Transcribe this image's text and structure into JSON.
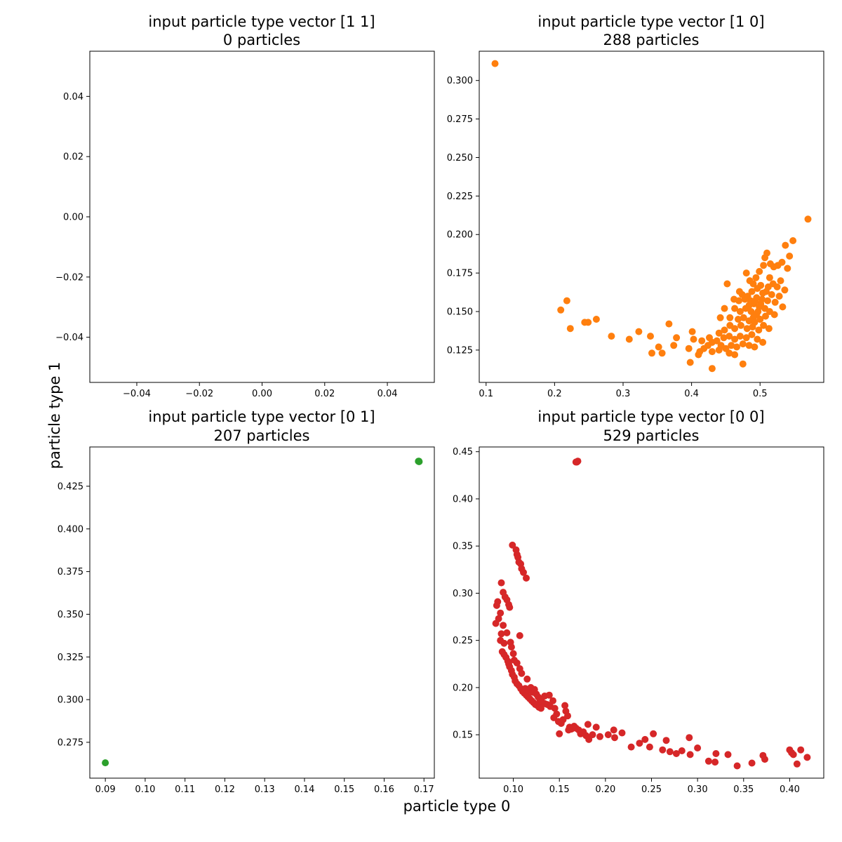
{
  "figure": {
    "xlabel": "particle type 0",
    "ylabel": "particle type 1"
  },
  "chart_data": [
    {
      "type": "scatter",
      "title": "input particle type vector [1 1]",
      "subtitle": "0 particles",
      "color": "#1f77b4",
      "xlim": [
        -0.055,
        0.055
      ],
      "ylim": [
        -0.055,
        0.055
      ],
      "xticks": [
        -0.04,
        -0.02,
        0.0,
        0.02,
        0.04
      ],
      "xtick_labels": [
        "−0.04",
        "−0.02",
        "0.00",
        "0.02",
        "0.04"
      ],
      "yticks": [
        -0.04,
        -0.02,
        0.0,
        0.02,
        0.04
      ],
      "ytick_labels": [
        "−0.04",
        "−0.02",
        "0.00",
        "0.02",
        "0.04"
      ],
      "points": []
    },
    {
      "type": "scatter",
      "title": "input particle type vector [1 0]",
      "subtitle": "288 particles",
      "color": "#ff7f0e",
      "xlim": [
        0.09,
        0.593
      ],
      "ylim": [
        0.104,
        0.319
      ],
      "xticks": [
        0.1,
        0.2,
        0.3,
        0.4,
        0.5
      ],
      "xtick_labels": [
        "0.1",
        "0.2",
        "0.3",
        "0.4",
        "0.5"
      ],
      "yticks": [
        0.125,
        0.15,
        0.175,
        0.2,
        0.225,
        0.25,
        0.275,
        0.3
      ],
      "ytick_labels": [
        "0.125",
        "0.150",
        "0.175",
        "0.200",
        "0.225",
        "0.250",
        "0.275",
        "0.300"
      ],
      "points": [
        [
          0.113,
          0.311
        ],
        [
          0.57,
          0.21
        ],
        [
          0.548,
          0.196
        ],
        [
          0.537,
          0.193
        ],
        [
          0.543,
          0.186
        ],
        [
          0.532,
          0.182
        ],
        [
          0.526,
          0.18
        ],
        [
          0.52,
          0.179
        ],
        [
          0.51,
          0.188
        ],
        [
          0.507,
          0.185
        ],
        [
          0.515,
          0.181
        ],
        [
          0.505,
          0.18
        ],
        [
          0.499,
          0.176
        ],
        [
          0.48,
          0.175
        ],
        [
          0.494,
          0.172
        ],
        [
          0.514,
          0.172
        ],
        [
          0.485,
          0.17
        ],
        [
          0.53,
          0.17
        ],
        [
          0.54,
          0.178
        ],
        [
          0.536,
          0.164
        ],
        [
          0.525,
          0.166
        ],
        [
          0.519,
          0.168
        ],
        [
          0.49,
          0.168
        ],
        [
          0.501,
          0.167
        ],
        [
          0.496,
          0.165
        ],
        [
          0.488,
          0.163
        ],
        [
          0.509,
          0.163
        ],
        [
          0.517,
          0.161
        ],
        [
          0.528,
          0.16
        ],
        [
          0.533,
          0.153
        ],
        [
          0.522,
          0.156
        ],
        [
          0.511,
          0.157
        ],
        [
          0.503,
          0.158
        ],
        [
          0.495,
          0.159
        ],
        [
          0.486,
          0.157
        ],
        [
          0.478,
          0.158
        ],
        [
          0.469,
          0.157
        ],
        [
          0.474,
          0.161
        ],
        [
          0.482,
          0.16
        ],
        [
          0.491,
          0.155
        ],
        [
          0.499,
          0.153
        ],
        [
          0.507,
          0.152
        ],
        [
          0.514,
          0.15
        ],
        [
          0.521,
          0.148
        ],
        [
          0.495,
          0.148
        ],
        [
          0.487,
          0.15
        ],
        [
          0.479,
          0.152
        ],
        [
          0.471,
          0.15
        ],
        [
          0.463,
          0.152
        ],
        [
          0.456,
          0.146
        ],
        [
          0.468,
          0.145
        ],
        [
          0.476,
          0.146
        ],
        [
          0.484,
          0.144
        ],
        [
          0.492,
          0.143
        ],
        [
          0.5,
          0.145
        ],
        [
          0.505,
          0.141
        ],
        [
          0.513,
          0.139
        ],
        [
          0.498,
          0.138
        ],
        [
          0.489,
          0.14
        ],
        [
          0.481,
          0.139
        ],
        [
          0.472,
          0.141
        ],
        [
          0.463,
          0.139
        ],
        [
          0.456,
          0.141
        ],
        [
          0.448,
          0.138
        ],
        [
          0.44,
          0.136
        ],
        [
          0.447,
          0.133
        ],
        [
          0.455,
          0.134
        ],
        [
          0.463,
          0.132
        ],
        [
          0.471,
          0.134
        ],
        [
          0.48,
          0.133
        ],
        [
          0.488,
          0.135
        ],
        [
          0.496,
          0.132
        ],
        [
          0.504,
          0.13
        ],
        [
          0.492,
          0.127
        ],
        [
          0.484,
          0.128
        ],
        [
          0.475,
          0.129
        ],
        [
          0.466,
          0.127
        ],
        [
          0.458,
          0.128
        ],
        [
          0.45,
          0.126
        ],
        [
          0.443,
          0.128
        ],
        [
          0.437,
          0.131
        ],
        [
          0.43,
          0.13
        ],
        [
          0.424,
          0.128
        ],
        [
          0.418,
          0.126
        ],
        [
          0.412,
          0.124
        ],
        [
          0.43,
          0.124
        ],
        [
          0.44,
          0.125
        ],
        [
          0.455,
          0.123
        ],
        [
          0.463,
          0.122
        ],
        [
          0.475,
          0.116
        ],
        [
          0.43,
          0.113
        ],
        [
          0.5,
          0.145
        ],
        [
          0.497,
          0.15
        ],
        [
          0.501,
          0.155
        ],
        [
          0.508,
          0.147
        ],
        [
          0.493,
          0.157
        ],
        [
          0.504,
          0.162
        ],
        [
          0.512,
          0.166
        ],
        [
          0.49,
          0.146
        ],
        [
          0.484,
          0.154
        ],
        [
          0.462,
          0.158
        ],
        [
          0.47,
          0.163
        ],
        [
          0.448,
          0.152
        ],
        [
          0.442,
          0.146
        ],
        [
          0.452,
          0.168
        ],
        [
          0.426,
          0.133
        ],
        [
          0.415,
          0.131
        ],
        [
          0.403,
          0.132
        ],
        [
          0.396,
          0.126
        ],
        [
          0.401,
          0.137
        ],
        [
          0.398,
          0.117
        ],
        [
          0.41,
          0.122
        ],
        [
          0.378,
          0.133
        ],
        [
          0.374,
          0.128
        ],
        [
          0.367,
          0.142
        ],
        [
          0.352,
          0.127
        ],
        [
          0.357,
          0.123
        ],
        [
          0.342,
          0.123
        ],
        [
          0.34,
          0.134
        ],
        [
          0.323,
          0.137
        ],
        [
          0.309,
          0.132
        ],
        [
          0.283,
          0.134
        ],
        [
          0.261,
          0.145
        ],
        [
          0.249,
          0.143
        ],
        [
          0.244,
          0.143
        ],
        [
          0.223,
          0.139
        ],
        [
          0.218,
          0.157
        ],
        [
          0.209,
          0.151
        ]
      ]
    },
    {
      "type": "scatter",
      "title": "input particle type vector [0 1]",
      "subtitle": "207 particles",
      "color": "#2ca02c",
      "xlim": [
        0.0861,
        0.1726
      ],
      "ylim": [
        0.254,
        0.448
      ],
      "xticks": [
        0.09,
        0.1,
        0.11,
        0.12,
        0.13,
        0.14,
        0.15,
        0.16,
        0.17
      ],
      "xtick_labels": [
        "0.09",
        "0.10",
        "0.11",
        "0.12",
        "0.13",
        "0.14",
        "0.15",
        "0.16",
        "0.17"
      ],
      "yticks": [
        0.275,
        0.3,
        0.325,
        0.35,
        0.375,
        0.4,
        0.425
      ],
      "ytick_labels": [
        "0.275",
        "0.300",
        "0.325",
        "0.350",
        "0.375",
        "0.400",
        "0.425"
      ],
      "points": [
        [
          0.09,
          0.263
        ],
        [
          0.1687,
          0.4395
        ],
        [
          0.1686,
          0.4396
        ],
        [
          0.1688,
          0.4394
        ],
        [
          0.1687,
          0.4397
        ]
      ]
    },
    {
      "type": "scatter",
      "title": "input particle type vector [0 0]",
      "subtitle": "529 particles",
      "color": "#d62728",
      "xlim": [
        0.063,
        0.437
      ],
      "ylim": [
        0.104,
        0.455
      ],
      "xticks": [
        0.1,
        0.15,
        0.2,
        0.25,
        0.3,
        0.35,
        0.4
      ],
      "xtick_labels": [
        "0.10",
        "0.15",
        "0.20",
        "0.25",
        "0.30",
        "0.35",
        "0.40"
      ],
      "yticks": [
        0.15,
        0.2,
        0.25,
        0.3,
        0.35,
        0.4,
        0.45
      ],
      "ytick_labels": [
        "0.15",
        "0.20",
        "0.25",
        "0.30",
        "0.35",
        "0.40",
        "0.45"
      ],
      "points": [
        [
          0.169,
          0.439
        ],
        [
          0.17,
          0.44
        ],
        [
          0.168,
          0.439
        ],
        [
          0.099,
          0.351
        ],
        [
          0.103,
          0.346
        ],
        [
          0.104,
          0.341
        ],
        [
          0.105,
          0.338
        ],
        [
          0.106,
          0.333
        ],
        [
          0.108,
          0.331
        ],
        [
          0.109,
          0.326
        ],
        [
          0.111,
          0.322
        ],
        [
          0.114,
          0.316
        ],
        [
          0.087,
          0.311
        ],
        [
          0.089,
          0.301
        ],
        [
          0.091,
          0.296
        ],
        [
          0.093,
          0.293
        ],
        [
          0.095,
          0.288
        ],
        [
          0.096,
          0.285
        ],
        [
          0.083,
          0.291
        ],
        [
          0.082,
          0.287
        ],
        [
          0.086,
          0.279
        ],
        [
          0.084,
          0.273
        ],
        [
          0.081,
          0.268
        ],
        [
          0.089,
          0.266
        ],
        [
          0.093,
          0.258
        ],
        [
          0.087,
          0.257
        ],
        [
          0.086,
          0.25
        ],
        [
          0.09,
          0.247
        ],
        [
          0.097,
          0.248
        ],
        [
          0.088,
          0.238
        ],
        [
          0.09,
          0.235
        ],
        [
          0.092,
          0.232
        ],
        [
          0.094,
          0.228
        ],
        [
          0.095,
          0.225
        ],
        [
          0.096,
          0.222
        ],
        [
          0.098,
          0.218
        ],
        [
          0.099,
          0.214
        ],
        [
          0.101,
          0.211
        ],
        [
          0.102,
          0.207
        ],
        [
          0.104,
          0.204
        ],
        [
          0.106,
          0.202
        ],
        [
          0.108,
          0.199
        ],
        [
          0.11,
          0.196
        ],
        [
          0.112,
          0.194
        ],
        [
          0.114,
          0.192
        ],
        [
          0.116,
          0.19
        ],
        [
          0.118,
          0.188
        ],
        [
          0.12,
          0.186
        ],
        [
          0.122,
          0.184
        ],
        [
          0.124,
          0.182
        ],
        [
          0.126,
          0.181
        ],
        [
          0.128,
          0.179
        ],
        [
          0.13,
          0.178
        ],
        [
          0.113,
          0.199
        ],
        [
          0.117,
          0.197
        ],
        [
          0.121,
          0.195
        ],
        [
          0.125,
          0.193
        ],
        [
          0.129,
          0.187
        ],
        [
          0.119,
          0.2
        ],
        [
          0.123,
          0.198
        ],
        [
          0.127,
          0.19
        ],
        [
          0.131,
          0.185
        ],
        [
          0.134,
          0.183
        ],
        [
          0.137,
          0.182
        ],
        [
          0.14,
          0.18
        ],
        [
          0.109,
          0.215
        ],
        [
          0.115,
          0.209
        ],
        [
          0.107,
          0.22
        ],
        [
          0.104,
          0.226
        ],
        [
          0.101,
          0.229
        ],
        [
          0.1,
          0.236
        ],
        [
          0.098,
          0.243
        ],
        [
          0.107,
          0.255
        ],
        [
          0.134,
          0.191
        ],
        [
          0.139,
          0.192
        ],
        [
          0.143,
          0.186
        ],
        [
          0.145,
          0.178
        ],
        [
          0.147,
          0.172
        ],
        [
          0.144,
          0.168
        ],
        [
          0.149,
          0.164
        ],
        [
          0.152,
          0.162
        ],
        [
          0.154,
          0.166
        ],
        [
          0.156,
          0.181
        ],
        [
          0.157,
          0.175
        ],
        [
          0.159,
          0.17
        ],
        [
          0.161,
          0.158
        ],
        [
          0.163,
          0.156
        ],
        [
          0.166,
          0.159
        ],
        [
          0.168,
          0.157
        ],
        [
          0.171,
          0.155
        ],
        [
          0.173,
          0.151
        ],
        [
          0.176,
          0.153
        ],
        [
          0.179,
          0.149
        ],
        [
          0.181,
          0.161
        ],
        [
          0.182,
          0.145
        ],
        [
          0.186,
          0.15
        ],
        [
          0.19,
          0.158
        ],
        [
          0.194,
          0.148
        ],
        [
          0.203,
          0.15
        ],
        [
          0.209,
          0.155
        ],
        [
          0.21,
          0.147
        ],
        [
          0.218,
          0.152
        ],
        [
          0.228,
          0.137
        ],
        [
          0.237,
          0.141
        ],
        [
          0.243,
          0.145
        ],
        [
          0.248,
          0.137
        ],
        [
          0.252,
          0.151
        ],
        [
          0.262,
          0.134
        ],
        [
          0.266,
          0.144
        ],
        [
          0.27,
          0.132
        ],
        [
          0.277,
          0.13
        ],
        [
          0.283,
          0.133
        ],
        [
          0.291,
          0.147
        ],
        [
          0.292,
          0.129
        ],
        [
          0.3,
          0.136
        ],
        [
          0.312,
          0.122
        ],
        [
          0.319,
          0.121
        ],
        [
          0.32,
          0.13
        ],
        [
          0.333,
          0.129
        ],
        [
          0.343,
          0.117
        ],
        [
          0.359,
          0.12
        ],
        [
          0.371,
          0.128
        ],
        [
          0.373,
          0.124
        ],
        [
          0.4,
          0.134
        ],
        [
          0.402,
          0.131
        ],
        [
          0.404,
          0.129
        ],
        [
          0.408,
          0.119
        ],
        [
          0.412,
          0.134
        ],
        [
          0.419,
          0.126
        ],
        [
          0.15,
          0.151
        ],
        [
          0.16,
          0.155
        ]
      ]
    }
  ]
}
